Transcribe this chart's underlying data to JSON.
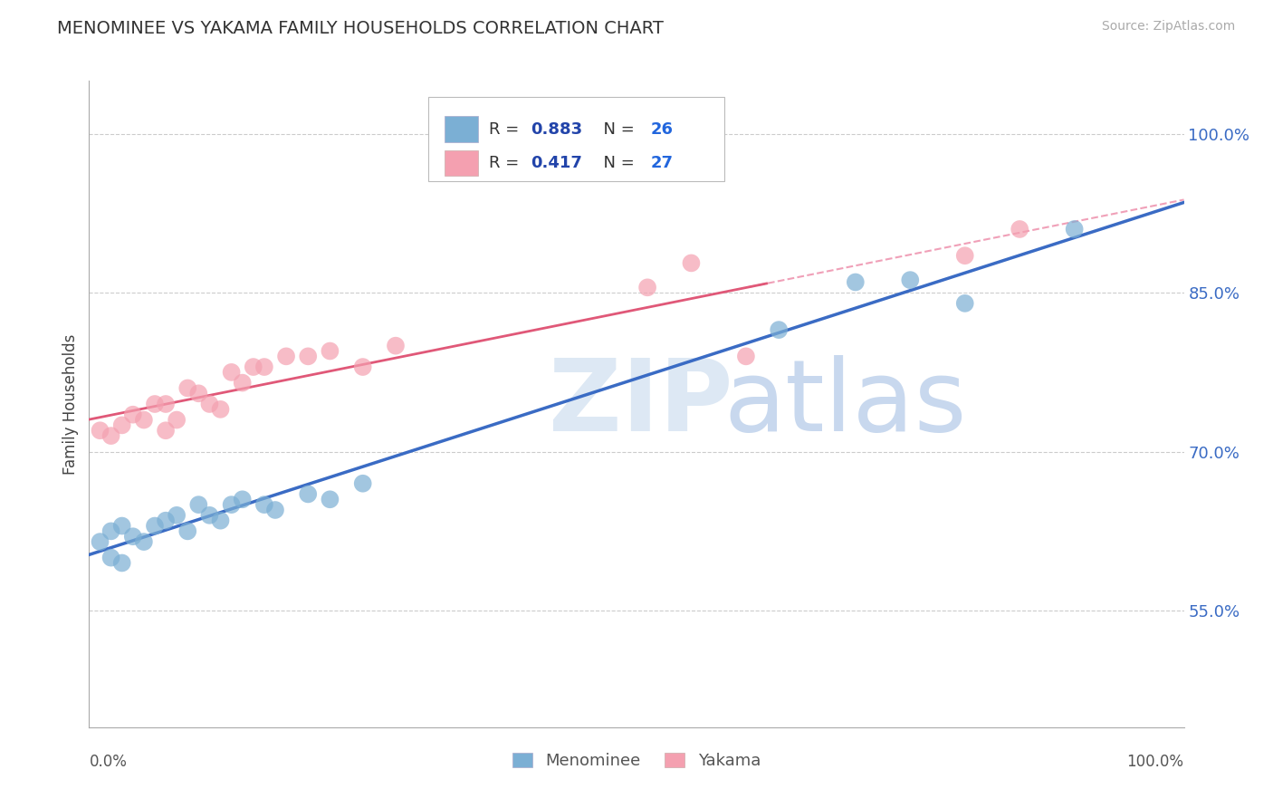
{
  "title": "MENOMINEE VS YAKAMA FAMILY HOUSEHOLDS CORRELATION CHART",
  "source": "Source: ZipAtlas.com",
  "ylabel": "Family Households",
  "R_menominee": 0.883,
  "N_menominee": 26,
  "R_yakama": 0.417,
  "N_yakama": 27,
  "ytick_labels": [
    "55.0%",
    "70.0%",
    "85.0%",
    "100.0%"
  ],
  "ytick_values": [
    0.55,
    0.7,
    0.85,
    1.0
  ],
  "xlim": [
    0.0,
    1.0
  ],
  "ylim": [
    0.44,
    1.05
  ],
  "menominee_x": [
    0.01,
    0.02,
    0.02,
    0.03,
    0.03,
    0.04,
    0.05,
    0.06,
    0.07,
    0.08,
    0.09,
    0.1,
    0.11,
    0.12,
    0.13,
    0.14,
    0.16,
    0.17,
    0.2,
    0.22,
    0.25,
    0.63,
    0.7,
    0.75,
    0.8,
    0.9
  ],
  "menominee_y": [
    0.615,
    0.6,
    0.625,
    0.595,
    0.63,
    0.62,
    0.615,
    0.63,
    0.635,
    0.64,
    0.625,
    0.65,
    0.64,
    0.635,
    0.65,
    0.655,
    0.65,
    0.645,
    0.66,
    0.655,
    0.67,
    0.815,
    0.86,
    0.862,
    0.84,
    0.91
  ],
  "yakama_x": [
    0.01,
    0.02,
    0.03,
    0.04,
    0.05,
    0.06,
    0.07,
    0.07,
    0.08,
    0.09,
    0.1,
    0.11,
    0.12,
    0.13,
    0.14,
    0.15,
    0.16,
    0.18,
    0.2,
    0.22,
    0.25,
    0.28,
    0.51,
    0.55,
    0.6,
    0.8,
    0.85
  ],
  "yakama_y": [
    0.72,
    0.715,
    0.725,
    0.735,
    0.73,
    0.745,
    0.745,
    0.72,
    0.73,
    0.76,
    0.755,
    0.745,
    0.74,
    0.775,
    0.765,
    0.78,
    0.78,
    0.79,
    0.79,
    0.795,
    0.78,
    0.8,
    0.855,
    0.878,
    0.79,
    0.885,
    0.91
  ],
  "menominee_color": "#7BAFD4",
  "yakama_color": "#F4A0B0",
  "menominee_line_color": "#3A6BC4",
  "yakama_line_color": "#E05878",
  "yakama_dash_color": "#F0A0B8",
  "background_color": "#ffffff",
  "grid_color": "#cccccc",
  "legend_text_color": "#2244AA",
  "legend_N_color": "#2266DD"
}
